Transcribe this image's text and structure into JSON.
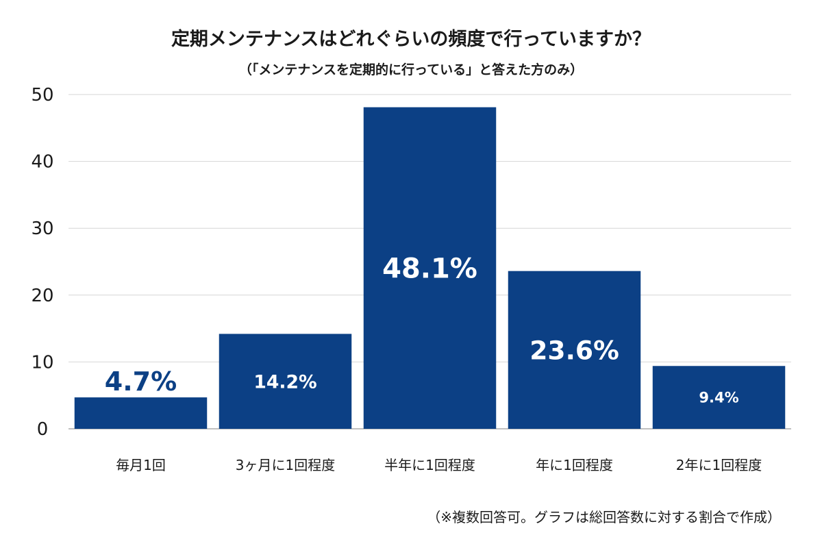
{
  "chart_data": {
    "type": "bar",
    "title": "定期メンテナンスはどれぐらいの頻度で行っていますか？",
    "subtitle": "（「メンテナンスを定期的に行っている」と答えた方のみ）",
    "categories": [
      "毎月1回",
      "3ヶ月に1回程度",
      "半年に1回程度",
      "年に1回程度",
      "2年に1回程度"
    ],
    "values": [
      4.7,
      14.2,
      48.1,
      23.6,
      9.4
    ],
    "data_labels": [
      "4.7%",
      "14.2%",
      "48.1%",
      "23.6%",
      "9.4%"
    ],
    "ylim": [
      0,
      50
    ],
    "yticks": [
      0,
      10,
      20,
      30,
      40,
      50
    ],
    "xlabel": "",
    "ylabel": "",
    "grid": true,
    "bar_color": "#0c4085",
    "note": "（※複数回答可。グラフは総回答数に対する割合で作成）"
  }
}
